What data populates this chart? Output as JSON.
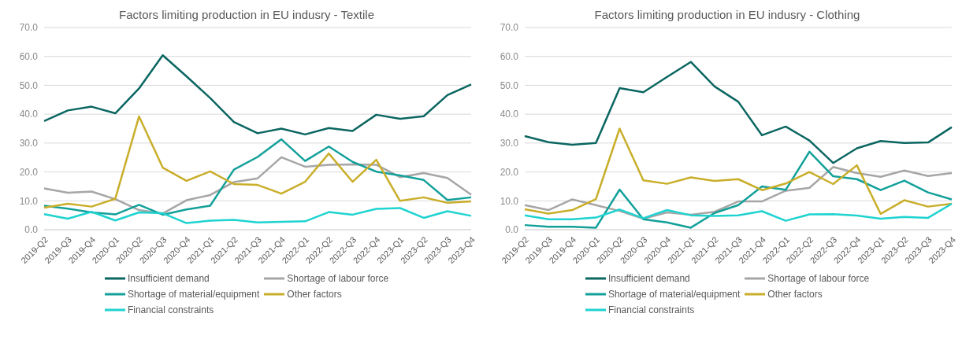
{
  "chart_data": [
    {
      "type": "line",
      "title": "Factors limiting production in EU indusry - Textile",
      "categories": [
        "2019-Q2",
        "2019-Q3",
        "2019-Q4",
        "2020-Q1",
        "2020-Q2",
        "2020-Q3",
        "2020-Q4",
        "2021-Q1",
        "2021-Q2",
        "2021-Q3",
        "2021-Q4",
        "2022-Q1",
        "2022-Q2",
        "2022-Q3",
        "2022-Q4",
        "2023-Q1",
        "2023-Q2",
        "2023-Q3",
        "2023-Q4"
      ],
      "series": [
        {
          "name": "Insufficient demand",
          "color": "#0b6661",
          "values": [
            37.6,
            41.3,
            42.6,
            40.3,
            48.9,
            60.4,
            53.1,
            45.6,
            37.3,
            33.4,
            35,
            33,
            35.2,
            34.2,
            39.8,
            38.4,
            39.3,
            46.6,
            50.3
          ]
        },
        {
          "name": "Shortage of labour force",
          "color": "#a6a6a6",
          "values": [
            14.3,
            12.8,
            13.2,
            10.6,
            6.8,
            5.6,
            10.2,
            12,
            16.5,
            17.8,
            25.1,
            21.8,
            22.5,
            22.6,
            22.5,
            18.2,
            19.6,
            17.9,
            12.1
          ]
        },
        {
          "name": "Shortage of material/equipment",
          "color": "#13a09a",
          "values": [
            8.3,
            7.3,
            6,
            5.3,
            8.6,
            5.2,
            7,
            8.3,
            20.8,
            25.2,
            31.3,
            23.8,
            28.8,
            23.5,
            20.1,
            18.8,
            17.2,
            10.3,
            11.2
          ]
        },
        {
          "name": "Other factors",
          "color": "#c9ae2a",
          "values": [
            7.6,
            9,
            8,
            10.7,
            39.2,
            21.5,
            16.9,
            20.2,
            15.8,
            15.5,
            12.5,
            16.6,
            26.4,
            16.6,
            24.2,
            10,
            11.2,
            9.3,
            9.8
          ]
        },
        {
          "name": "Financial constraints",
          "color": "#1fd3d0",
          "values": [
            5.4,
            3.8,
            6.2,
            3.2,
            6,
            5.7,
            2.3,
            3.1,
            3.4,
            2.5,
            2.7,
            2.9,
            6.1,
            5.2,
            7.2,
            7.5,
            4.1,
            6.4,
            4.8
          ]
        }
      ],
      "ylim": [
        0,
        70
      ],
      "yticks": [
        {
          "value": 0,
          "label": "0.0"
        },
        {
          "value": 10,
          "label": "10.0"
        },
        {
          "value": 20,
          "label": "20.0"
        },
        {
          "value": 30,
          "label": "30.0"
        },
        {
          "value": 40,
          "label": "40.0"
        },
        {
          "value": 50,
          "label": "50.0"
        },
        {
          "value": 60,
          "label": "60.0"
        },
        {
          "value": 70,
          "label": "70.0"
        }
      ],
      "grid": "y",
      "legend": "bottom",
      "marker": "none",
      "line_style": "solid"
    },
    {
      "type": "line",
      "title": "Factors limiting production in EU indusry - Clothing",
      "categories": [
        "2019-Q2",
        "2019-Q3",
        "2019-Q4",
        "2020-Q1",
        "2020-Q2",
        "2020-Q3",
        "2020-Q4",
        "2021-Q1",
        "2021-Q2",
        "2021-Q3",
        "2021-Q4",
        "2022-Q1",
        "2022-Q2",
        "2022-Q3",
        "2022-Q4",
        "2023-Q1",
        "2023-Q2",
        "2023-Q3",
        "2023-Q4"
      ],
      "series": [
        {
          "name": "Insufficient demand",
          "color": "#0b6661",
          "values": [
            32.4,
            30.3,
            29.4,
            30,
            49,
            47.6,
            52.9,
            58.1,
            49.6,
            44.3,
            32.7,
            35.7,
            30.9,
            23.1,
            28.2,
            30.7,
            30,
            30.2,
            35.5
          ]
        },
        {
          "name": "Shortage of labour force",
          "color": "#a6a6a6",
          "values": [
            8.5,
            6.8,
            10.5,
            8.5,
            6.5,
            3.8,
            6,
            5.2,
            6.2,
            9.8,
            9.8,
            13.5,
            14.5,
            21.7,
            19.6,
            18.3,
            20.5,
            18.6,
            19.6
          ]
        },
        {
          "name": "Shortage of material/equipment",
          "color": "#13a09a",
          "values": [
            1.6,
            1,
            1,
            0.7,
            13.9,
            3.6,
            2.5,
            0.7,
            5.8,
            8.5,
            15,
            13.8,
            27,
            18.5,
            17.5,
            13.7,
            17,
            12.9,
            10.5
          ]
        },
        {
          "name": "Other factors",
          "color": "#c9ae2a",
          "values": [
            7.1,
            5.6,
            6.8,
            10.6,
            35,
            17.1,
            15.9,
            18.1,
            16.9,
            17.5,
            13.7,
            16,
            20,
            15.8,
            22.3,
            5.5,
            10.2,
            8,
            9
          ]
        },
        {
          "name": "Financial constraints",
          "color": "#1fd3d0",
          "values": [
            5,
            3.6,
            3.6,
            4.2,
            7,
            4,
            6.8,
            5,
            4.8,
            5,
            6.4,
            3.1,
            5.3,
            5.4,
            4.9,
            3.8,
            4.4,
            4.1,
            9
          ]
        }
      ],
      "ylim": [
        0,
        70
      ],
      "yticks": [
        {
          "value": 0,
          "label": "0.0"
        },
        {
          "value": 10,
          "label": "10.0"
        },
        {
          "value": 20,
          "label": "20.0"
        },
        {
          "value": 30,
          "label": "30.0"
        },
        {
          "value": 40,
          "label": "40.0"
        },
        {
          "value": 50,
          "label": "50.0"
        },
        {
          "value": 60,
          "label": "60.0"
        },
        {
          "value": 70,
          "label": "70.0"
        }
      ],
      "grid": "y",
      "legend": "bottom",
      "marker": "none",
      "line_style": "solid"
    }
  ]
}
